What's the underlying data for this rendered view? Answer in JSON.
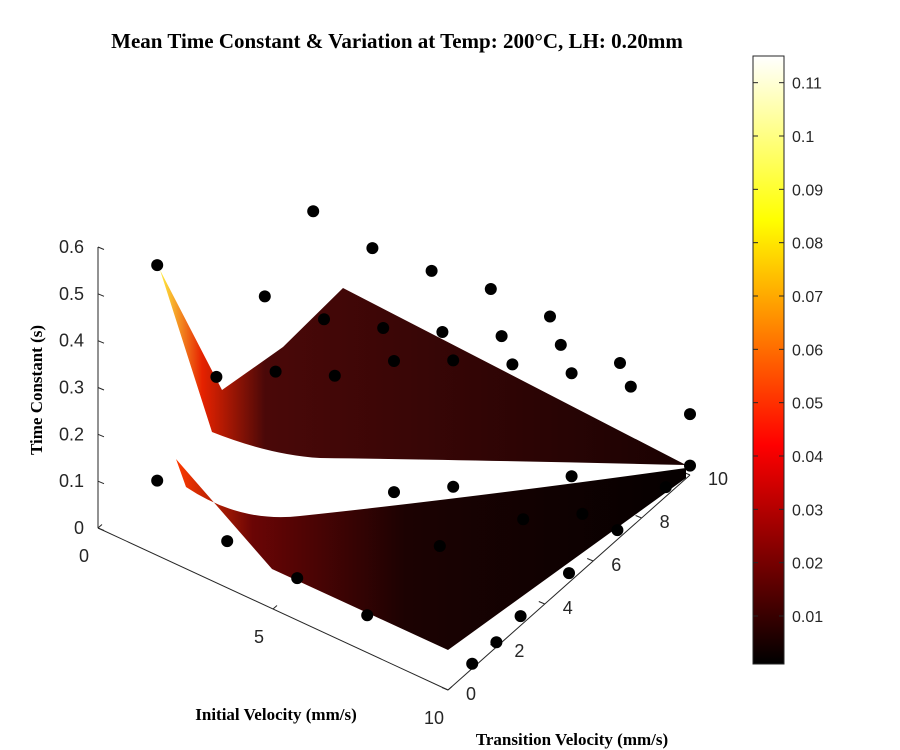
{
  "chart_data": {
    "type": "surface3d",
    "title": "Mean Time Constant & Variation at Temp: 200°C, LH: 0.20mm",
    "xlabel": "Initial Velocity (mm/s)",
    "ylabel": "Transition Velocity (mm/s)",
    "zlabel": "Time Constant (s)",
    "x_ticks": [
      "0",
      "5",
      "10"
    ],
    "y_ticks": [
      "0",
      "2",
      "4",
      "6",
      "8",
      "10"
    ],
    "z_ticks": [
      "0",
      "0.1",
      "0.2",
      "0.3",
      "0.4",
      "0.5",
      "0.6"
    ],
    "colorbar": {
      "colormap": "hot",
      "ticks": [
        "0.01",
        "0.02",
        "0.03",
        "0.04",
        "0.05",
        "0.06",
        "0.07",
        "0.08",
        "0.09",
        "0.1",
        "0.11"
      ],
      "range": [
        0.001,
        0.115
      ]
    },
    "xlim": [
      0,
      10
    ],
    "ylim": [
      0,
      10
    ],
    "zlim": [
      0,
      0.6
    ],
    "series": [
      {
        "name": "",
        "role": "mean surface (upper)",
        "points": [
          {
            "x": 1,
            "y": 1,
            "z": 0.55,
            "c": 0.11
          },
          {
            "x": 2,
            "y": 2,
            "z": 0.3,
            "c": 0.02
          },
          {
            "x": 3,
            "y": 3,
            "z": 0.3,
            "c": 0.01
          },
          {
            "x": 4,
            "y": 4,
            "z": 0.28,
            "c": 0.01
          },
          {
            "x": 5,
            "y": 5,
            "z": 0.3,
            "c": 0.01
          },
          {
            "x": 6,
            "y": 6,
            "z": 0.29,
            "c": 0.01
          },
          {
            "x": 7,
            "y": 7,
            "z": 0.27,
            "c": 0.01
          },
          {
            "x": 8,
            "y": 8,
            "z": 0.24,
            "c": 0.01
          },
          {
            "x": 9,
            "y": 9,
            "z": 0.2,
            "c": 0.01
          },
          {
            "x": 10,
            "y": 10,
            "z": 0.13,
            "c": 0.005
          },
          {
            "x": 2,
            "y": 4,
            "z": 0.38,
            "c": 0.01
          },
          {
            "x": 2,
            "y": 6,
            "z": 0.47,
            "c": 0.01
          },
          {
            "x": 3,
            "y": 7,
            "z": 0.38,
            "c": 0.01
          },
          {
            "x": 4,
            "y": 8,
            "z": 0.32,
            "c": 0.01
          },
          {
            "x": 5,
            "y": 9,
            "z": 0.27,
            "c": 0.01
          },
          {
            "x": 6,
            "y": 10,
            "z": 0.2,
            "c": 0.01
          },
          {
            "x": 3,
            "y": 5,
            "z": 0.32,
            "c": 0.01
          },
          {
            "x": 4,
            "y": 6,
            "z": 0.29,
            "c": 0.01
          },
          {
            "x": 5,
            "y": 7,
            "z": 0.27,
            "c": 0.01
          },
          {
            "x": 6,
            "y": 8,
            "z": 0.25,
            "c": 0.01
          },
          {
            "x": 7,
            "y": 9,
            "z": 0.22,
            "c": 0.01
          },
          {
            "x": 8,
            "y": 10,
            "z": 0.17,
            "c": 0.005
          }
        ]
      },
      {
        "name": "",
        "role": "variation surface (lower)",
        "points": [
          {
            "x": 1,
            "y": 1,
            "z": 0.09,
            "c": 0.04
          },
          {
            "x": 3,
            "y": 1,
            "z": 0.03,
            "c": 0.01
          },
          {
            "x": 5,
            "y": 1,
            "z": 0.02,
            "c": 0.005
          },
          {
            "x": 7,
            "y": 1,
            "z": 0.01,
            "c": 0.005
          },
          {
            "x": 10,
            "y": 1,
            "z": 0.01,
            "c": 0.002
          },
          {
            "x": 10,
            "y": 2,
            "z": 0.01,
            "c": 0.002
          },
          {
            "x": 10,
            "y": 3,
            "z": 0.02,
            "c": 0.002
          },
          {
            "x": 10,
            "y": 5,
            "z": 0.02,
            "c": 0.002
          },
          {
            "x": 10,
            "y": 7,
            "z": 0.02,
            "c": 0.002
          },
          {
            "x": 10,
            "y": 9,
            "z": 0.02,
            "c": 0.002
          },
          {
            "x": 10,
            "y": 10,
            "z": 0.02,
            "c": 0.002
          },
          {
            "x": 7,
            "y": 4,
            "z": 0.02,
            "c": 0.003
          },
          {
            "x": 6,
            "y": 6,
            "z": 0.02,
            "c": 0.003
          },
          {
            "x": 8,
            "y": 6,
            "z": 0.02,
            "c": 0.003
          },
          {
            "x": 8,
            "y": 8,
            "z": 0.02,
            "c": 0.003
          },
          {
            "x": 5,
            "y": 5,
            "z": 0.02,
            "c": 0.004
          },
          {
            "x": 9,
            "y": 7,
            "z": 0.02,
            "c": 0.003
          }
        ]
      }
    ],
    "grid": false
  }
}
